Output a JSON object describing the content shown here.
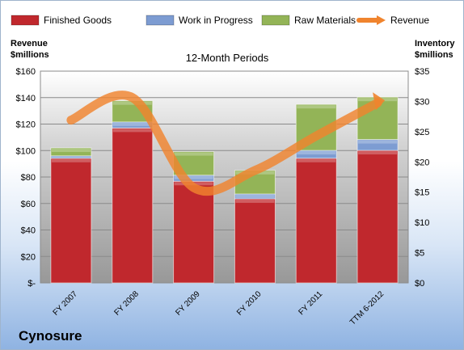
{
  "company": "Cynosure",
  "chart_data": {
    "type": "bar",
    "subtitle": "12-Month Periods",
    "categories": [
      "FY 2007",
      "FY 2008",
      "FY 2009",
      "FY 2010",
      "FY 2011",
      "TTM 6-2012"
    ],
    "y_left": {
      "label_lines": [
        "Revenue",
        "$millions"
      ],
      "ticks": [
        "$-",
        "$20",
        "$40",
        "$60",
        "$80",
        "$100",
        "$120",
        "$140",
        "$160"
      ],
      "lim": [
        0,
        160
      ]
    },
    "y_right": {
      "label_lines": [
        "Inventory",
        "$millions"
      ],
      "ticks": [
        "$0",
        "$5",
        "$10",
        "$15",
        "$20",
        "$25",
        "$30",
        "$35"
      ],
      "lim": [
        0,
        35
      ]
    },
    "stacked_series": [
      {
        "name": "Finished Goods",
        "axis": "right",
        "color": "#c0282d",
        "values": [
          20.6,
          25.6,
          16.8,
          13.9,
          20.6,
          21.9
        ]
      },
      {
        "name": "Work in Progress",
        "axis": "right",
        "color": "#7d9cd2",
        "values": [
          0.4,
          1.0,
          1.0,
          0.8,
          1.3,
          1.8
        ]
      },
      {
        "name": "Raw Materials",
        "axis": "right",
        "color": "#93b457",
        "values": [
          1.3,
          3.5,
          3.9,
          3.9,
          7.6,
          7.0
        ]
      }
    ],
    "line_series": {
      "name": "Revenue",
      "axis": "left",
      "color": "#f0842e",
      "values": [
        123,
        140,
        72,
        85,
        111,
        136
      ]
    },
    "legend": [
      "Finished Goods",
      "Work in Progress",
      "Raw Materials",
      "Revenue"
    ],
    "legend_position": "top",
    "grid": true
  }
}
